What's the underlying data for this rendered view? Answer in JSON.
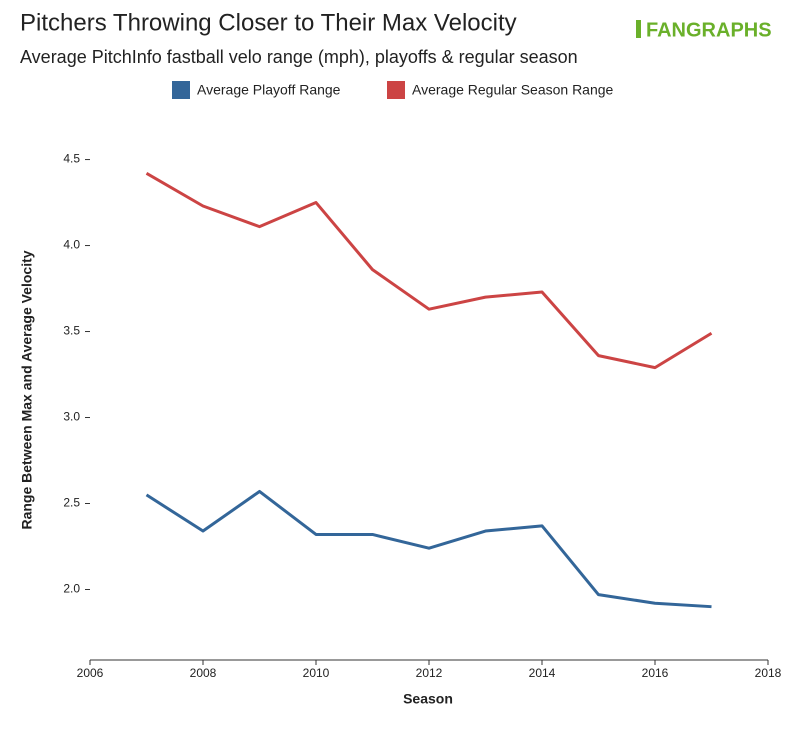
{
  "chart_data": {
    "type": "line",
    "title": "Pitchers Throwing Closer to Their Max Velocity",
    "subtitle": "Average PitchInfo fastball velo range (mph), playoffs & regular season",
    "logo": "FANGRAPHS",
    "x_label": "Season",
    "y_label": "Range Between Max and Average Velocity",
    "x": [
      2007,
      2008,
      2009,
      2010,
      2011,
      2012,
      2013,
      2014,
      2015,
      2016,
      2017
    ],
    "series": [
      {
        "name": "Average Playoff Range",
        "color": "#336699",
        "values": [
          2.55,
          2.34,
          2.57,
          2.32,
          2.32,
          2.24,
          2.34,
          2.37,
          1.97,
          1.92,
          1.9
        ]
      },
      {
        "name": "Average Regular Season Range",
        "color": "#cc4444",
        "values": [
          4.42,
          4.23,
          4.11,
          4.25,
          3.86,
          3.63,
          3.7,
          3.73,
          3.36,
          3.29,
          3.49
        ]
      }
    ],
    "xlim": [
      2006,
      2018
    ],
    "xticks": [
      2006,
      2008,
      2010,
      2012,
      2014,
      2016,
      2018
    ],
    "ylim": [
      1.59,
      4.73
    ],
    "yticks": [
      {
        "value": 2,
        "label": "2.0"
      },
      2.5,
      {
        "value": 3,
        "label": "3.0"
      },
      3.5,
      {
        "value": 4,
        "label": "4.0"
      },
      4.5
    ],
    "legend": "top"
  }
}
